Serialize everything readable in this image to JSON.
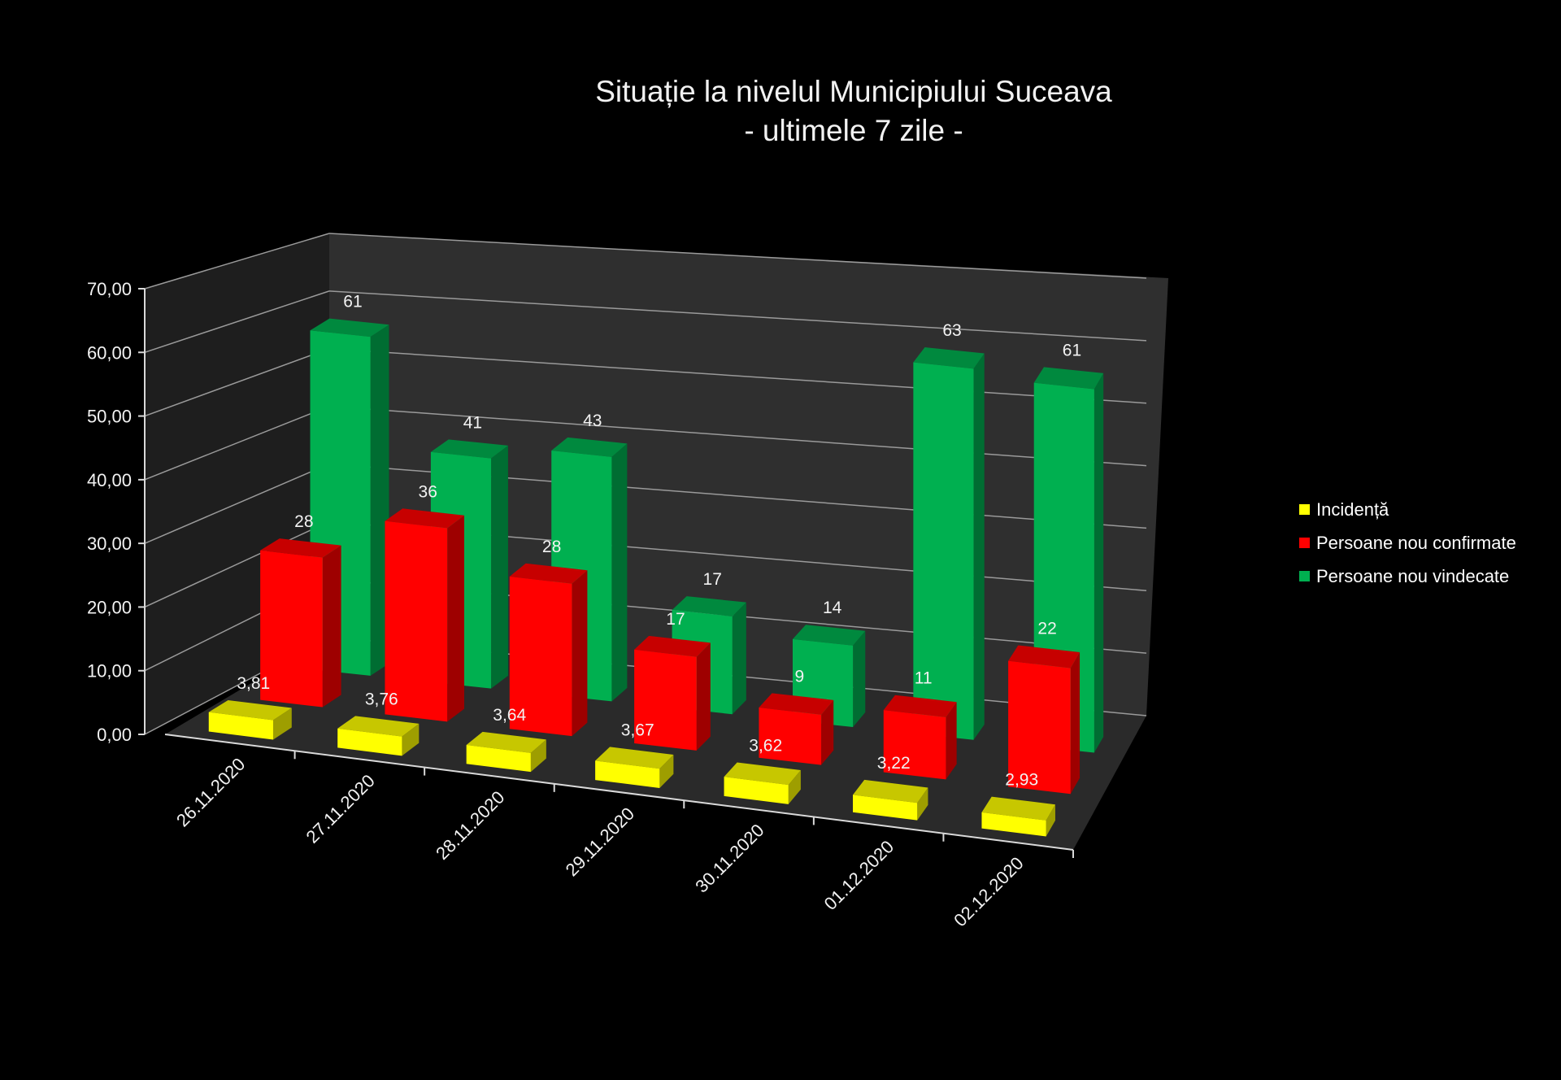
{
  "chart_data": {
    "type": "bar",
    "title": "Situație la nivelul Municipiului Suceava",
    "subtitle": "- ultimele 7 zile -",
    "categories": [
      "26.11.2020",
      "27.11.2020",
      "28.11.2020",
      "29.11.2020",
      "30.11.2020",
      "01.12.2020",
      "02.12.2020"
    ],
    "series": [
      {
        "name": "Incidență",
        "color": "#ffff00",
        "values": [
          3.81,
          3.76,
          3.64,
          3.67,
          3.62,
          3.22,
          2.93
        ],
        "labels": [
          "3,81",
          "3,76",
          "3,64",
          "3,67",
          "3,62",
          "3,22",
          "2,93"
        ]
      },
      {
        "name": "Persoane nou confirmate",
        "color": "#ff0000",
        "values": [
          28,
          36,
          28,
          17,
          9,
          11,
          22
        ],
        "labels": [
          "28",
          "36",
          "28",
          "17",
          "9",
          "11",
          "22"
        ]
      },
      {
        "name": "Persoane nou vindecate",
        "color": "#00b050",
        "values": [
          61,
          41,
          43,
          17,
          14,
          63,
          61
        ],
        "labels": [
          "61",
          "41",
          "43",
          "17",
          "14",
          "63",
          "61"
        ]
      }
    ],
    "ylim": [
      0,
      70
    ],
    "yticks": [
      "0,00",
      "10,00",
      "20,00",
      "30,00",
      "40,00",
      "50,00",
      "60,00",
      "70,00"
    ],
    "grid": true,
    "legend": "right"
  }
}
